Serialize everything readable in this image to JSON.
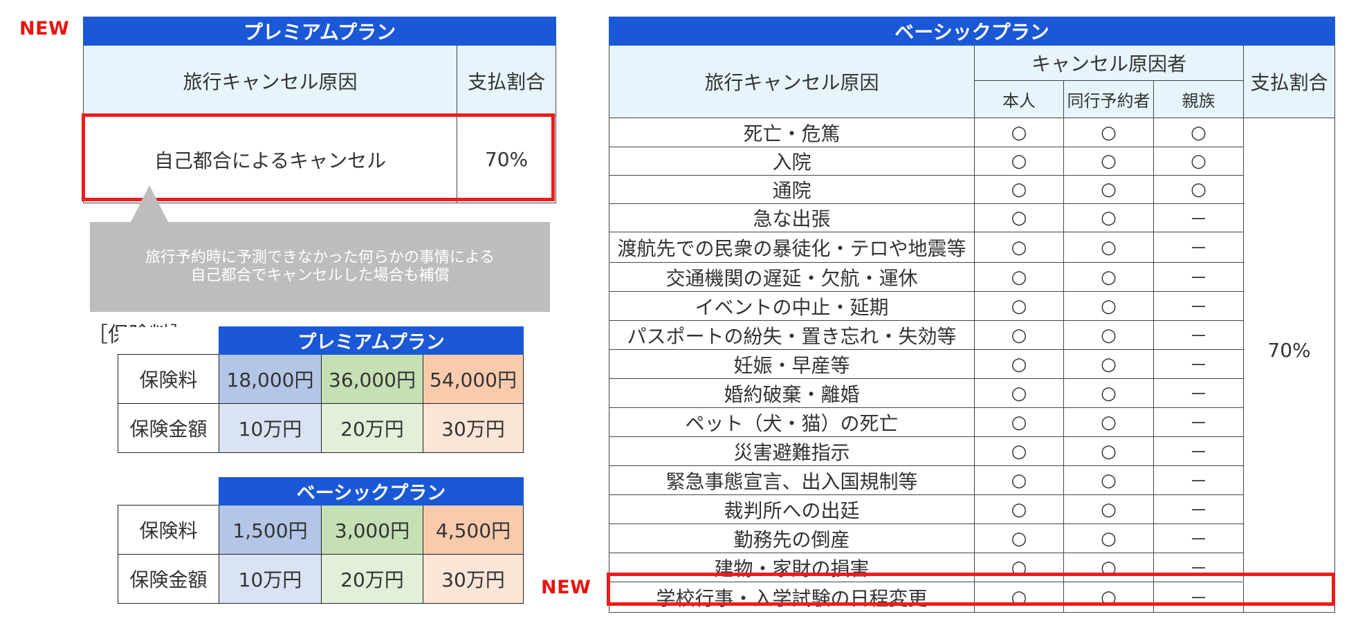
{
  "new_label": "NEW",
  "premium": {
    "header": "プレミアムプラン",
    "col_cause": "旅行キャンセル原因",
    "col_rate": "支払割合",
    "row_cause": "自己都合によるキャンセル",
    "row_rate": "70%"
  },
  "callout": {
    "line1": "旅行予約時に予測できなかった何らかの事情による",
    "line2": "自己都合でキャンセルした場合も補償"
  },
  "fee_title": "［保険料］",
  "premium_fees": {
    "header": "プレミアムプラン",
    "row1_label": "保険料",
    "row1": [
      "18,000円",
      "36,000円",
      "54,000円"
    ],
    "row2_label": "保険金額",
    "row2": [
      "10万円",
      "20万円",
      "30万円"
    ]
  },
  "basic_fees": {
    "header": "ベーシックプラン",
    "row1_label": "保険料",
    "row1": [
      "1,500円",
      "3,000円",
      "4,500円"
    ],
    "row2_label": "保険金額",
    "row2": [
      "10万円",
      "20万円",
      "30万円"
    ]
  },
  "basic": {
    "header": "ベーシックプラン",
    "col_cause": "旅行キャンセル原因",
    "col_person": "キャンセル原因者",
    "col_self": "本人",
    "col_companion": "同行予約者",
    "col_relative": "親族",
    "col_rate": "支払割合",
    "rate": "70%",
    "rows": [
      {
        "cause": "死亡・危篤",
        "self": "○",
        "companion": "○",
        "relative": "○"
      },
      {
        "cause": "入院",
        "self": "○",
        "companion": "○",
        "relative": "○"
      },
      {
        "cause": "通院",
        "self": "○",
        "companion": "○",
        "relative": "○"
      },
      {
        "cause": "急な出張",
        "self": "○",
        "companion": "○",
        "relative": "－"
      },
      {
        "cause": "渡航先での民衆の暴徒化・テロや地震等",
        "self": "○",
        "companion": "○",
        "relative": "－"
      },
      {
        "cause": "交通機関の遅延・欠航・運休",
        "self": "○",
        "companion": "○",
        "relative": "－"
      },
      {
        "cause": "イベントの中止・延期",
        "self": "○",
        "companion": "○",
        "relative": "－"
      },
      {
        "cause": "パスポートの紛失・置き忘れ・失効等",
        "self": "○",
        "companion": "○",
        "relative": "－"
      },
      {
        "cause": "妊娠・早産等",
        "self": "○",
        "companion": "○",
        "relative": "－"
      },
      {
        "cause": "婚約破棄・離婚",
        "self": "○",
        "companion": "○",
        "relative": "－"
      },
      {
        "cause": "ペット（犬・猫）の死亡",
        "self": "○",
        "companion": "○",
        "relative": "－"
      },
      {
        "cause": "災害避難指示",
        "self": "○",
        "companion": "○",
        "relative": "－"
      },
      {
        "cause": "緊急事態宣言、出入国規制等",
        "self": "○",
        "companion": "○",
        "relative": "－"
      },
      {
        "cause": "裁判所への出廷",
        "self": "○",
        "companion": "○",
        "relative": "－"
      },
      {
        "cause": "勤務先の倒産",
        "self": "○",
        "companion": "○",
        "relative": "－"
      },
      {
        "cause": "建物・家財の損害",
        "self": "○",
        "companion": "○",
        "relative": "－"
      },
      {
        "cause": "学校行事・入学試験の日程変更",
        "self": "○",
        "companion": "○",
        "relative": "－"
      }
    ]
  }
}
